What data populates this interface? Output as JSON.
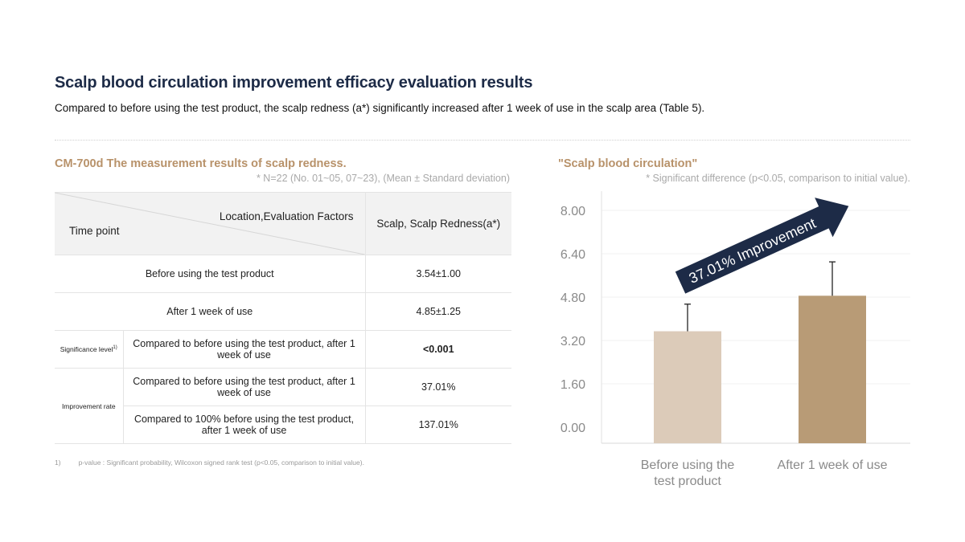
{
  "header": {
    "title": "Scalp blood circulation improvement efficacy evaluation results",
    "subtitle": "Compared to before using the test product, the scalp redness (a*) significantly increased after 1 week of use in the scalp area (Table 5)."
  },
  "table_section": {
    "title": "CM-700d The measurement results of scalp redness.",
    "note": "* N=22 (No. 01~05, 07~23), (Mean ± Standard deviation)",
    "head_top": "Location,Evaluation Factors",
    "head_bottom": "Time point",
    "head_col": "Scalp, Scalp Redness(a*)",
    "rows": {
      "before": {
        "label": "Before using the test product",
        "value": "3.54±1.00"
      },
      "after": {
        "label": "After 1 week of use",
        "value": "4.85±1.25"
      },
      "significance": {
        "group": "Significance level",
        "sup": "1)",
        "label": "Compared to before using the test product, after 1 week of use",
        "value": "<0.001"
      },
      "improvement_1": {
        "group": "Improvement rate",
        "label": "Compared to before using the test product, after 1 week of use",
        "value": "37.01%"
      },
      "improvement_2": {
        "label": "Compared to 100% before using the test product, after 1 week of use",
        "value": "137.01%"
      }
    },
    "footnote_num": "1)",
    "footnote_text": "p-value : Significant probability, Wilcoxon signed rank test (p<0.05, comparison to initial value)."
  },
  "chart_section": {
    "title": "\"Scalp blood circulation\"",
    "note": "* Significant difference (p<0.05, comparison to initial value)."
  },
  "chart_data": {
    "type": "bar",
    "categories": [
      "Before using the test product",
      "After 1 week of use"
    ],
    "values": [
      3.54,
      4.85
    ],
    "errors": [
      1.0,
      1.25
    ],
    "ylim": [
      0,
      8
    ],
    "yticks": [
      "0.00",
      "1.60",
      "3.20",
      "4.80",
      "6.40",
      "8.00"
    ],
    "bar_colors": [
      "#dccbb9",
      "#b89b76"
    ],
    "annotation": "37.01% Improvement",
    "annotation_color": "#1d2b47",
    "grid": true
  }
}
